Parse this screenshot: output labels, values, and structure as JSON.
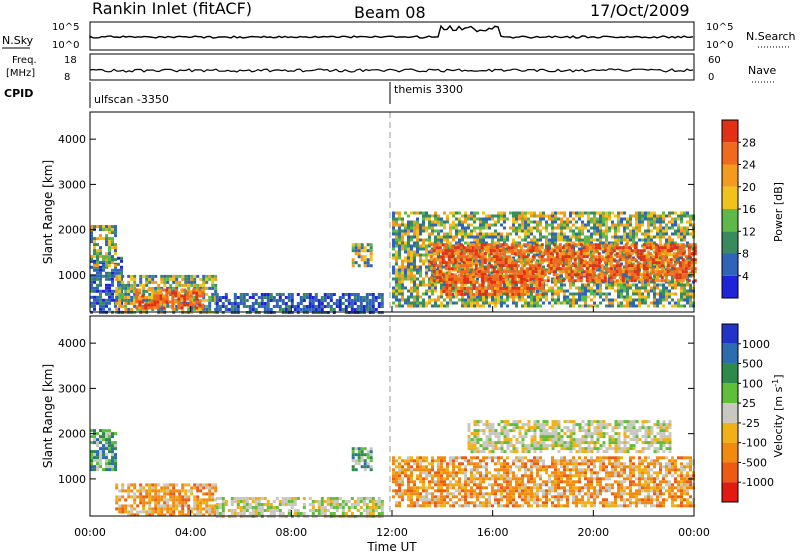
{
  "header": {
    "station": "Rankin Inlet (fitACF)",
    "beam": "Beam 08",
    "date": "17/Oct/2009"
  },
  "strip_panels": {
    "nsky_label": "N.Sky",
    "nsky_ticks": [
      "10^5",
      "10^0"
    ],
    "nsearch_label": "N.Search",
    "nsearch_ticks": [
      "10^5",
      "10^0"
    ],
    "freq_label_1": "Freq.",
    "freq_label_2": "[MHz]",
    "freq_ticks": [
      "18",
      "8"
    ],
    "nave_label": "Nave",
    "nave_ticks": [
      "60",
      "0"
    ],
    "cpid_label": "CPID",
    "cpid_segments": [
      "ulfscan -3350",
      "themis 3300"
    ]
  },
  "chart_data": [
    {
      "type": "heatmap",
      "title": "",
      "xlabel": "Time UT",
      "ylabel": "Slant Range [km]",
      "x_unit": "hours UT",
      "xlim": [
        0,
        24
      ],
      "ylim": [
        180,
        4600
      ],
      "x_ticks": [
        "00:00",
        "04:00",
        "08:00",
        "12:00",
        "16:00",
        "20:00",
        "00:00"
      ],
      "y_ticks": [
        "1000",
        "2000",
        "3000",
        "4000"
      ],
      "colorbar": {
        "label": "Power [dB]",
        "ticks": [
          "4",
          "8",
          "12",
          "16",
          "20",
          "24",
          "28"
        ],
        "colors": [
          "#1f24d8",
          "#2f64b8",
          "#3a8a60",
          "#5fb84a",
          "#f2c21c",
          "#f39b1c",
          "#ef6a1e",
          "#e23015"
        ]
      },
      "regions": [
        {
          "t0": 0.0,
          "t1": 1.2,
          "r0": 200,
          "r1": 1400,
          "level": "low"
        },
        {
          "t0": 0.0,
          "t1": 1.0,
          "r0": 1200,
          "r1": 2100,
          "level": "mid"
        },
        {
          "t0": 1.0,
          "t1": 5.0,
          "r0": 200,
          "r1": 1000,
          "level": "mid"
        },
        {
          "t0": 1.8,
          "t1": 4.5,
          "r0": 300,
          "r1": 700,
          "level": "high"
        },
        {
          "t0": 5.0,
          "t1": 11.6,
          "r0": 200,
          "r1": 600,
          "level": "low"
        },
        {
          "t0": 10.4,
          "t1": 11.2,
          "r0": 1200,
          "r1": 1700,
          "level": "mid"
        },
        {
          "t0": 12.0,
          "t1": 24.0,
          "r0": 300,
          "r1": 2400,
          "level": "mid"
        },
        {
          "t0": 13.5,
          "t1": 24.0,
          "r0": 900,
          "r1": 1700,
          "level": "high"
        },
        {
          "t0": 14.0,
          "t1": 18.0,
          "r0": 600,
          "r1": 1000,
          "level": "high"
        }
      ]
    },
    {
      "type": "heatmap",
      "title": "",
      "xlabel": "Time UT",
      "ylabel": "Slant Range [km]",
      "x_unit": "hours UT",
      "xlim": [
        0,
        24
      ],
      "ylim": [
        180,
        4600
      ],
      "x_ticks": [
        "00:00",
        "04:00",
        "08:00",
        "12:00",
        "16:00",
        "20:00",
        "00:00"
      ],
      "y_ticks": [
        "1000",
        "2000",
        "3000",
        "4000"
      ],
      "colorbar": {
        "label": "Velocity [m s",
        "label_sup": "-1",
        "label_end": "]",
        "ticks": [
          "1000",
          "500",
          "100",
          "25",
          "-25",
          "-100",
          "-500",
          "-1000"
        ],
        "colors": [
          "#2233c8",
          "#2e6cb0",
          "#2e8a4a",
          "#5fbf3a",
          "#c8c8c0",
          "#f0b018",
          "#f28a10",
          "#ec5a14",
          "#e21a12"
        ]
      },
      "regions": [
        {
          "t0": 0.0,
          "t1": 1.0,
          "r0": 1200,
          "r1": 2100,
          "level": "pos"
        },
        {
          "t0": 1.0,
          "t1": 5.0,
          "r0": 200,
          "r1": 900,
          "level": "neg"
        },
        {
          "t0": 5.0,
          "t1": 11.6,
          "r0": 200,
          "r1": 600,
          "level": "zero"
        },
        {
          "t0": 10.4,
          "t1": 11.2,
          "r0": 1200,
          "r1": 1700,
          "level": "pos"
        },
        {
          "t0": 12.0,
          "t1": 24.0,
          "r0": 400,
          "r1": 1500,
          "level": "neg"
        },
        {
          "t0": 15.0,
          "t1": 23.0,
          "r0": 1600,
          "r1": 2300,
          "level": "zero"
        }
      ]
    }
  ]
}
